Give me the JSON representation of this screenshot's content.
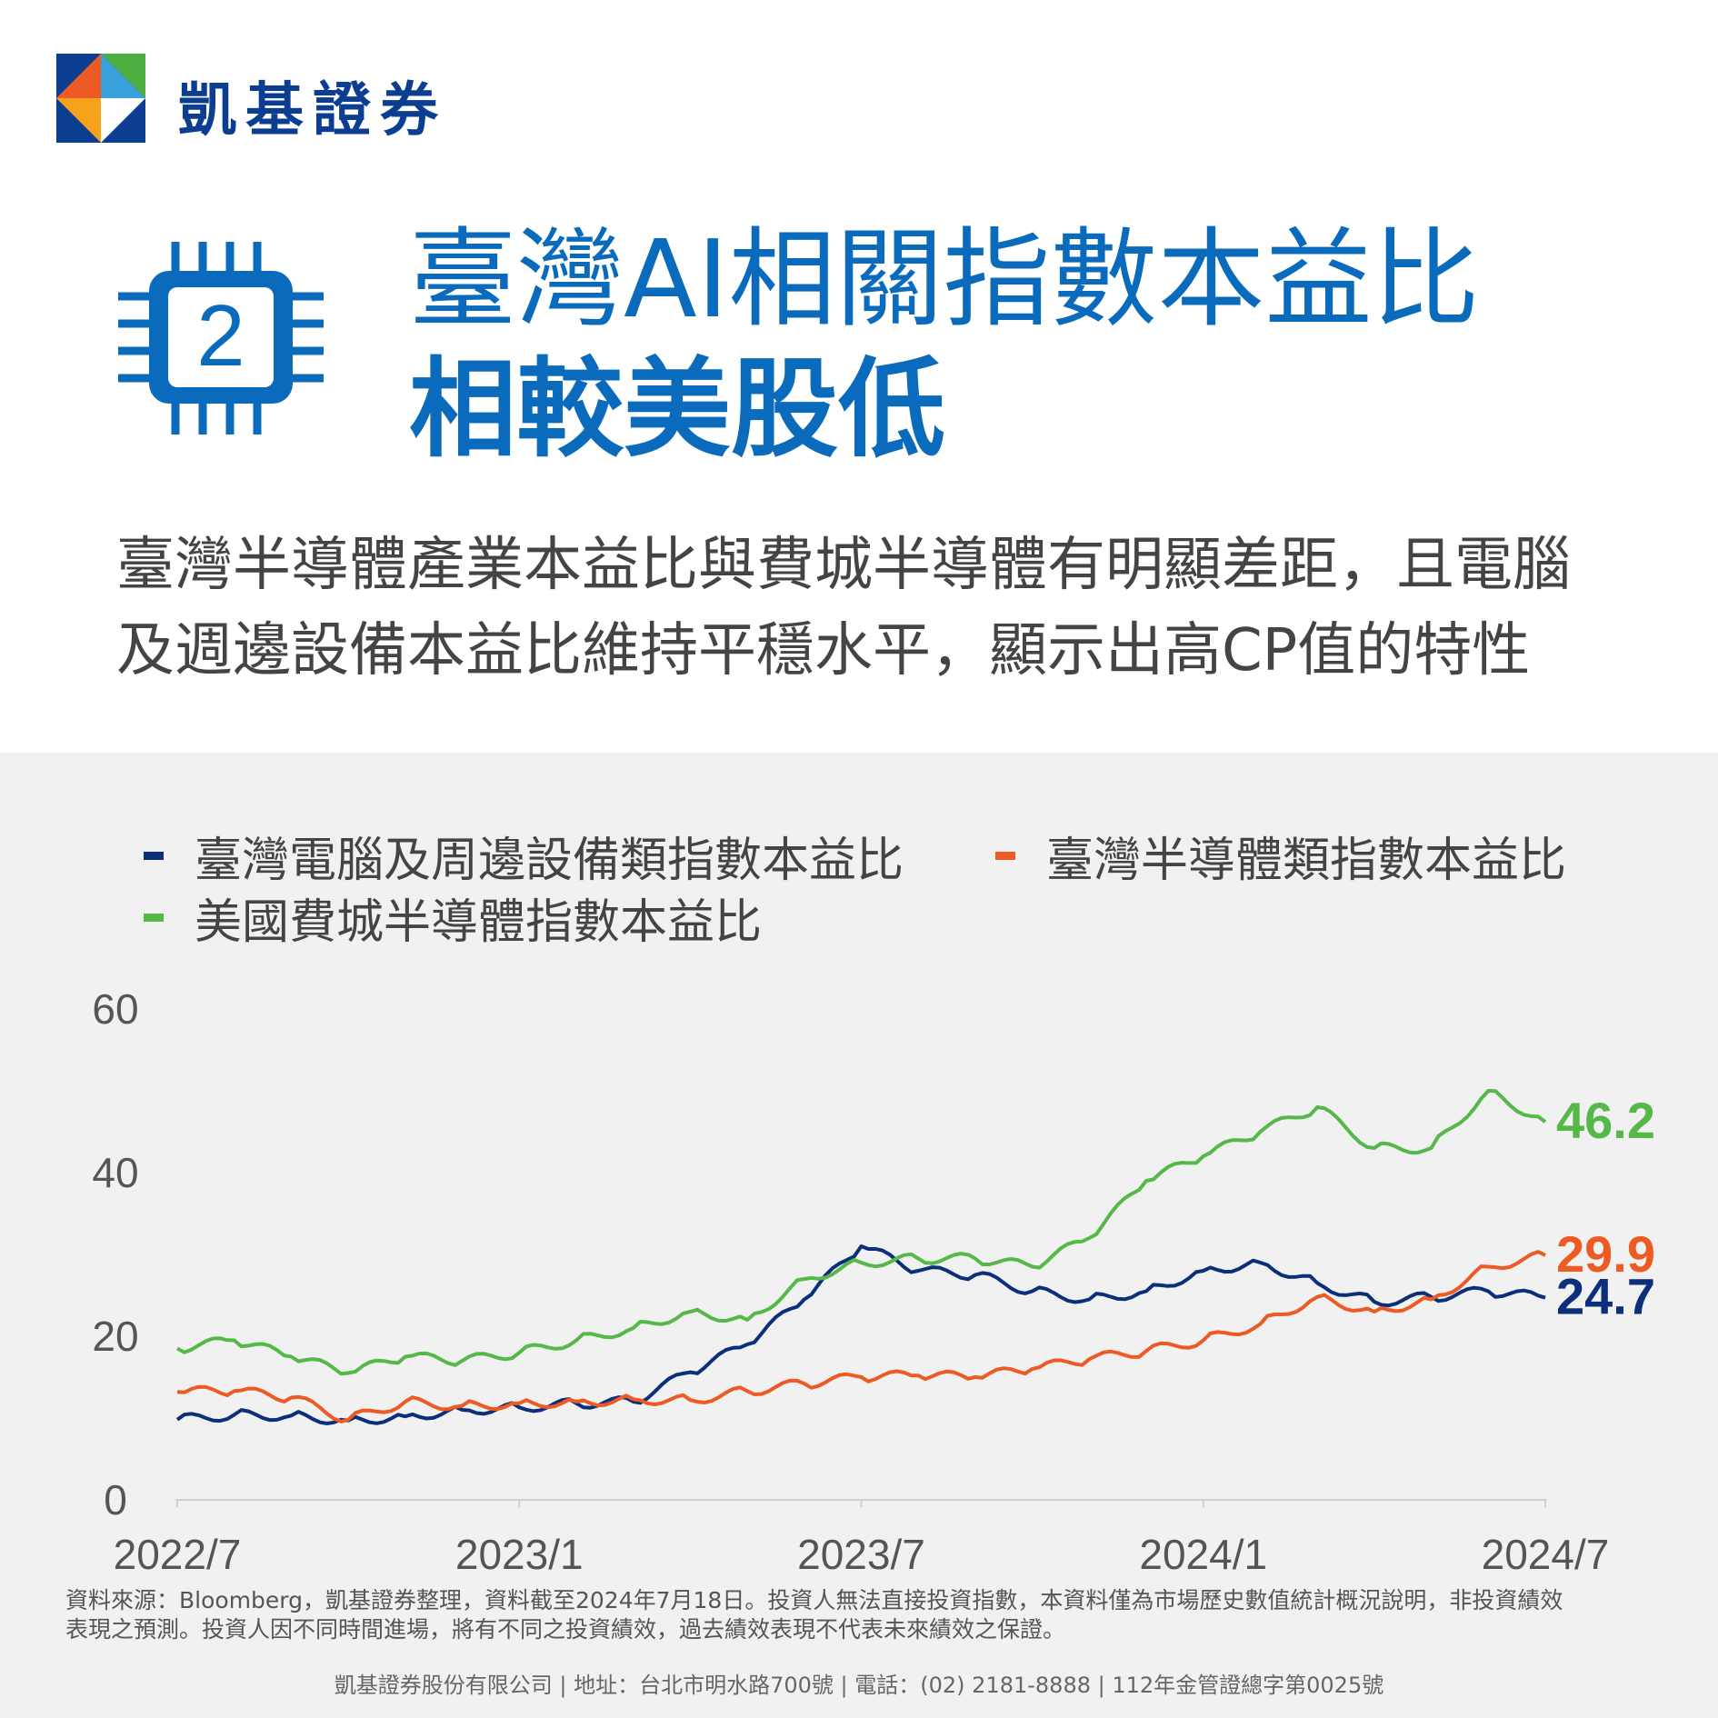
{
  "brand": {
    "name": "凱基證券"
  },
  "header": {
    "badge_number": "2",
    "title_line1": "臺灣AI相關指數本益比",
    "title_line2": "相較美股低"
  },
  "description": {
    "line1": "臺灣半導體產業本益比與費城半導體有明顯差距，且電腦",
    "line2": "及週邊設備本益比維持平穩水平，顯示出高CP值的特性"
  },
  "colors": {
    "navy": "#0b2f7a",
    "orange": "#ee5a24",
    "green": "#56b848",
    "title_blue": "#0a6bbd"
  },
  "chart_data": {
    "type": "line",
    "title": "",
    "xlabel": "",
    "ylabel": "",
    "x_ticks": [
      "2022/7",
      "2023/1",
      "2023/7",
      "2024/1",
      "2024/7"
    ],
    "y_ticks": [
      "0",
      "20",
      "40",
      "60"
    ],
    "ylim": [
      0,
      60
    ],
    "x": [
      "2022/7",
      "2022/8",
      "2022/9",
      "2022/10",
      "2022/11",
      "2022/12",
      "2023/1",
      "2023/2",
      "2023/3",
      "2023/4",
      "2023/5",
      "2023/6",
      "2023/7",
      "2023/8",
      "2023/9",
      "2023/10",
      "2023/11",
      "2023/12",
      "2024/1",
      "2024/2",
      "2024/3",
      "2024/4",
      "2024/5",
      "2024/6",
      "2024/7"
    ],
    "legend_position": "top",
    "grid": false,
    "series": [
      {
        "name": "臺灣電腦及周邊設備類指數本益比",
        "color": "#0b2f7a",
        "values": [
          9.8,
          10.4,
          10.3,
          9.7,
          10.2,
          11.0,
          11.3,
          11.8,
          12.0,
          15.6,
          19.0,
          24.5,
          31.0,
          28.0,
          27.5,
          25.5,
          24.5,
          25.5,
          28.0,
          29.0,
          26.5,
          24.2,
          24.8,
          25.5,
          24.7
        ],
        "last_label": "24.7"
      },
      {
        "name": "臺灣半導體類指數本益比",
        "color": "#ee5a24",
        "values": [
          13.2,
          13.3,
          12.5,
          9.8,
          12.0,
          11.5,
          11.8,
          12.0,
          12.3,
          12.2,
          13.3,
          14.2,
          15.0,
          15.2,
          15.0,
          16.0,
          17.2,
          18.2,
          19.5,
          21.5,
          24.8,
          23.0,
          24.5,
          28.5,
          29.9
        ],
        "last_label": "29.9"
      },
      {
        "name": "美國費城半導體指數本益比",
        "color": "#56b848",
        "values": [
          18.5,
          19.5,
          17.5,
          15.5,
          17.5,
          17.0,
          18.0,
          19.5,
          21.0,
          23.0,
          22.0,
          27.0,
          29.0,
          29.5,
          29.5,
          28.5,
          32.0,
          39.0,
          42.0,
          45.0,
          48.0,
          43.0,
          43.0,
          50.0,
          46.2
        ],
        "last_label": "46.2"
      }
    ]
  },
  "source_note": {
    "line1": "資料來源：Bloomberg，凱基證券整理，資料截至2024年7月18日。投資人無法直接投資指數，本資料僅為市場歷史數值統計概況說明，非投資績效",
    "line2": "表現之預測。投資人因不同時間進場，將有不同之投資績效，過去績效表現不代表未來績效之保證。"
  },
  "footer": {
    "text": "凱基證券股份有限公司 | 地址：台北市明水路700號 | 電話：(02) 2181-8888 | 112年金管證總字第0025號"
  }
}
